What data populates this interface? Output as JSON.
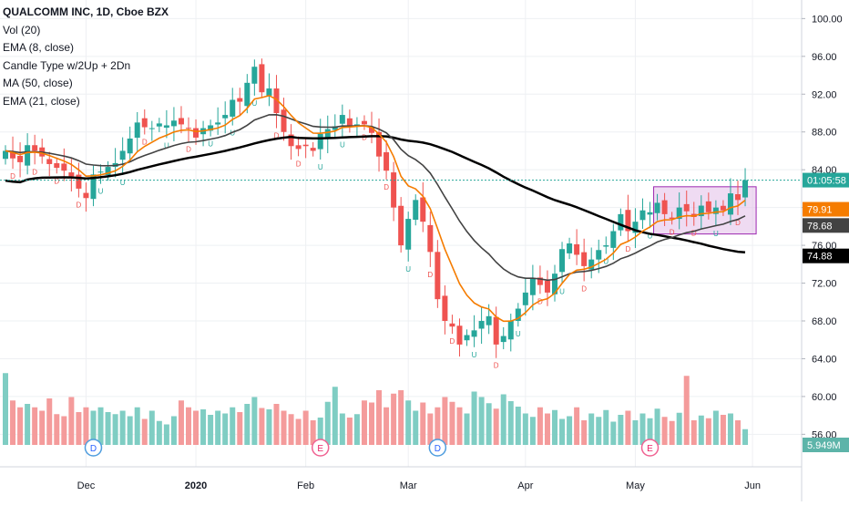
{
  "legend": {
    "title": "QUALCOMM INC, 1D, Cboe BZX",
    "indicators": [
      "Vol (20)",
      "EMA (8, close)",
      "Candle Type w/2Up + 2Dn",
      "MA (50, close)",
      "EMA (21, close)"
    ]
  },
  "colors": {
    "up": "#26a69a",
    "down": "#ef5350",
    "up_volume": "#7fcdc3",
    "down_volume": "#f49b9b",
    "ema8": "#f57c00",
    "ema21": "#424242",
    "ma50": "#000000",
    "box_fill": "#e1bee7",
    "box_stroke": "#9c27b0",
    "last_price": "#26a69a"
  },
  "price_labels": {
    "last": "01:05:58",
    "ema8": "79.91",
    "ema21": "78.68",
    "ma50": "74.88",
    "volume": "5.949M"
  },
  "chart_data": {
    "type": "candlestick",
    "x_ticks": [
      "Dec",
      "2020",
      "Feb",
      "Mar",
      "Apr",
      "May",
      "Jun"
    ],
    "y_ticks": [
      "100.00",
      "96.00",
      "92.00",
      "88.00",
      "84.00",
      "80.00",
      "76.00",
      "72.00",
      "68.00",
      "64.00",
      "60.00",
      "56.00"
    ],
    "ylim": [
      54.2,
      101
    ],
    "grid": true,
    "series": [
      {
        "name": "EMA (8, close)"
      },
      {
        "name": "EMA (21, close)"
      },
      {
        "name": "MA (50, close)"
      }
    ],
    "last_price_level": 82.9,
    "earnings_markers": [
      {
        "letter": "D",
        "day": 12
      },
      {
        "letter": "E",
        "day": 43
      },
      {
        "letter": "D",
        "day": 59
      },
      {
        "letter": "E",
        "day": 88
      }
    ],
    "range_box": {
      "start_day": 89,
      "end_day": 102,
      "y_top": 82.2,
      "y_bottom": 77.2
    },
    "candle_type_labels": {
      "up": "U",
      "down": "D"
    },
    "closes": [
      86,
      85.2,
      84.8,
      86.6,
      86,
      85.4,
      84.6,
      84.2,
      83.9,
      83.3,
      82,
      81,
      83.5,
      83.8,
      84.3,
      84.7,
      86,
      87.3,
      89,
      88.5,
      88.4,
      88.9,
      88.7,
      89.2,
      88.8,
      88.4,
      87.4,
      88.4,
      88.7,
      89,
      89.8,
      91.4,
      91.2,
      93.2,
      94.9,
      92.2,
      92.6,
      90,
      88,
      86.5,
      86.2,
      86.5,
      86,
      87.8,
      88.3,
      88.6,
      89.8,
      88.7,
      88.8,
      88.8,
      87.9,
      85.4,
      83.9,
      80,
      76,
      78.8,
      80.8,
      78.5,
      75.3,
      70.3,
      68,
      67.4,
      65.5,
      66.5,
      67,
      68,
      68.5,
      65.5,
      66.4,
      68,
      69.3,
      71,
      72.5,
      71.8,
      71,
      73,
      75.6,
      76.2,
      75,
      73.8,
      74.5,
      75.5,
      76,
      77.5,
      79.3,
      77.5,
      78.5,
      79.7,
      79.5,
      80.5,
      79.3,
      78.8,
      80,
      79.6,
      79,
      80.2,
      79.5,
      80,
      79.7,
      81.5,
      80.8,
      82.9
    ],
    "volume": {
      "ylim": [
        0,
        14
      ],
      "values": [
        10.5,
        6.5,
        5.5,
        6,
        5.5,
        5,
        6.8,
        4.5,
        4.2,
        7,
        4.8,
        5.5,
        5,
        5.5,
        4.8,
        4.5,
        5,
        4.2,
        5.5,
        3.8,
        5,
        3.5,
        3,
        4.2,
        6.5,
        5.5,
        5,
        5.2,
        4.4,
        5,
        4.6,
        5.5,
        4.8,
        6,
        7,
        5.4,
        5.2,
        6,
        5,
        4.5,
        3.8,
        5,
        3.6,
        4,
        6.3,
        8.5,
        4.6,
        4,
        4.5,
        6.5,
        6.2,
        8,
        5.5,
        7.5,
        8,
        6.5,
        5,
        6.2,
        4.6,
        5.5,
        7,
        6.3,
        5.5,
        4.6,
        7.8,
        7,
        6.1,
        5.3,
        7.4,
        6.4,
        5.6,
        4.6,
        4.1,
        5.5,
        4.6,
        5.1,
        3.8,
        4.2,
        5.5,
        3.6,
        4.6,
        4.1,
        5.1,
        3.4,
        4.4,
        5,
        3.6,
        4.6,
        3.9,
        5.3,
        4.1,
        3.5,
        4.7,
        10.1,
        3.6,
        4.3,
        3.9,
        5,
        4.4,
        4.6,
        3.6,
        2.3
      ]
    }
  }
}
